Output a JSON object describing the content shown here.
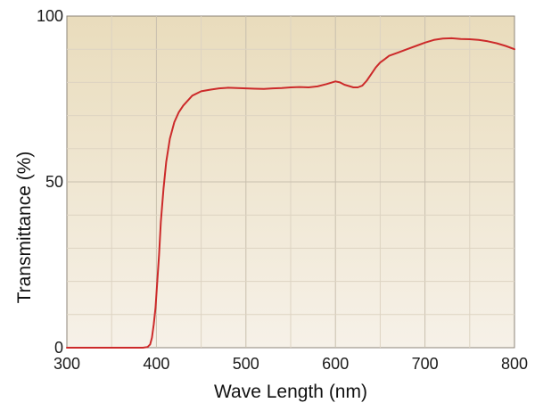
{
  "chart_data": {
    "type": "line",
    "title": "",
    "xlabel": "Wave Length (nm)",
    "ylabel": "Transmittance (%)",
    "xlim": [
      300,
      800
    ],
    "ylim": [
      0,
      100
    ],
    "x_ticks": [
      "300",
      "400",
      "500",
      "600",
      "700",
      "800"
    ],
    "y_ticks": [
      "0",
      "50",
      "100"
    ],
    "grid": true,
    "legend": "none",
    "series": [
      {
        "color": "#cc2a2a",
        "x": [
          300,
          380,
          385,
          390,
          393,
          395,
          397,
          399,
          401,
          403,
          405,
          408,
          411,
          415,
          420,
          425,
          430,
          440,
          450,
          460,
          470,
          480,
          490,
          500,
          510,
          520,
          530,
          540,
          550,
          560,
          570,
          580,
          590,
          600,
          605,
          610,
          615,
          620,
          625,
          630,
          635,
          640,
          645,
          650,
          655,
          660,
          670,
          680,
          690,
          700,
          710,
          720,
          730,
          740,
          750,
          760,
          770,
          780,
          790,
          800
        ],
        "y": [
          0,
          0,
          0,
          0.2,
          1,
          3,
          7,
          12,
          20,
          28,
          38,
          48,
          56,
          63,
          68,
          71,
          73,
          76,
          77.3,
          77.8,
          78.2,
          78.4,
          78.3,
          78.2,
          78.1,
          78,
          78.2,
          78.3,
          78.5,
          78.6,
          78.5,
          78.8,
          79.5,
          80.3,
          80,
          79.3,
          78.9,
          78.5,
          78.5,
          79,
          80.5,
          82.5,
          84.5,
          86,
          87,
          88,
          89,
          90,
          91,
          92,
          92.8,
          93.2,
          93.3,
          93.1,
          93,
          92.8,
          92.4,
          91.8,
          91,
          90
        ]
      }
    ]
  }
}
